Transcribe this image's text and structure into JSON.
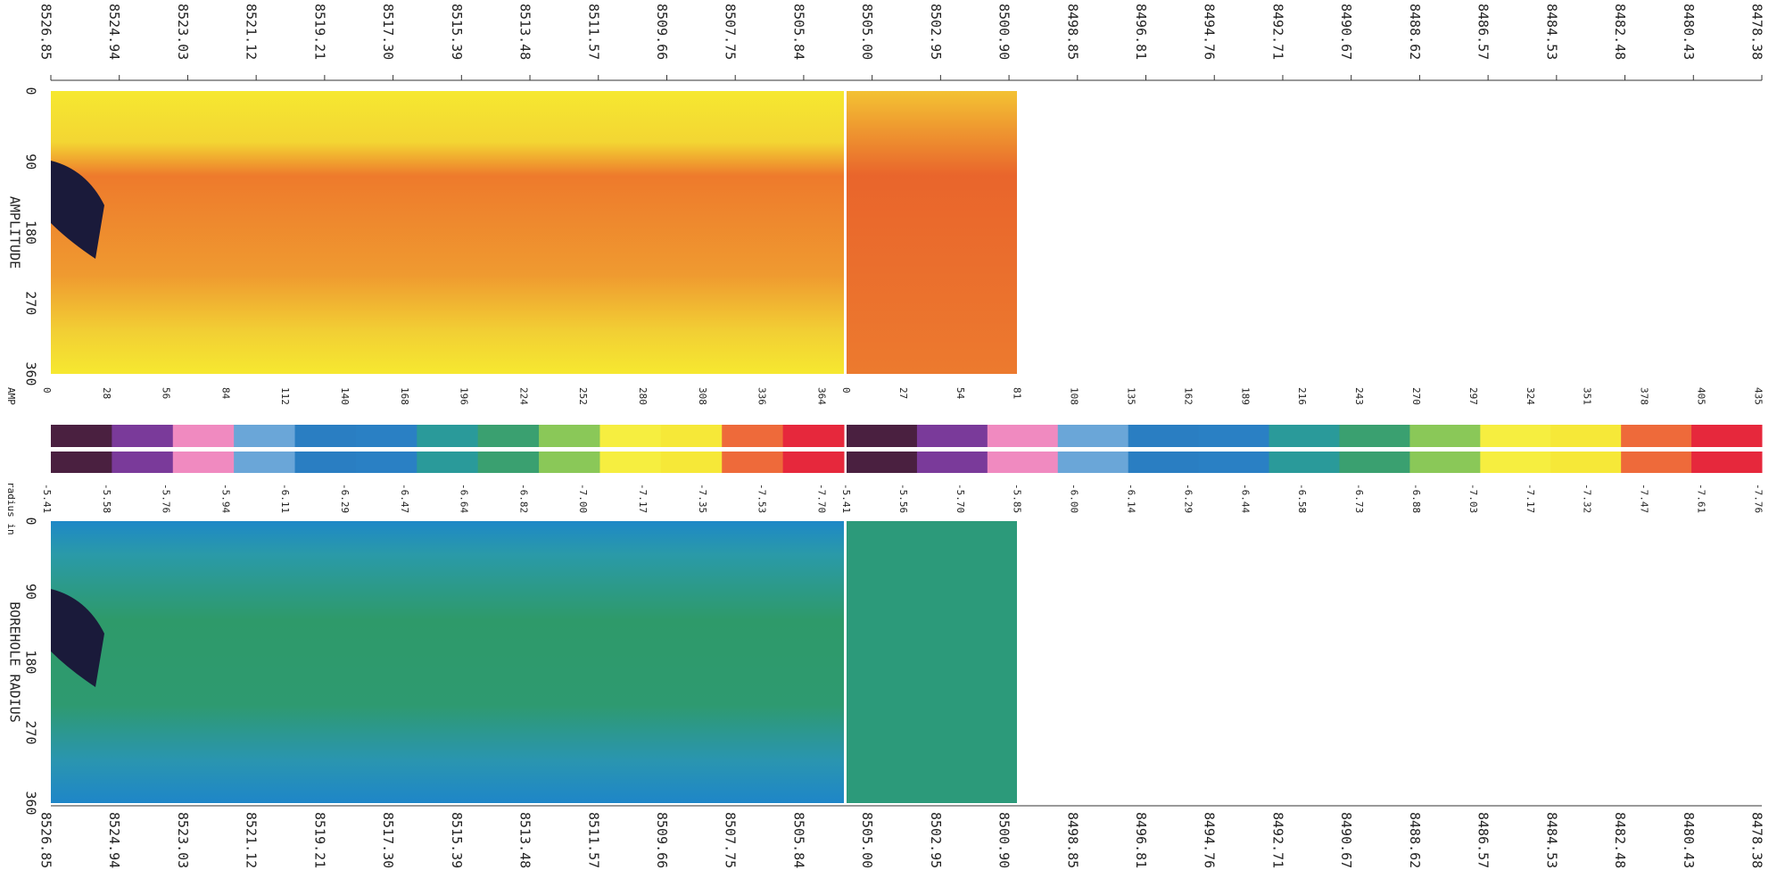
{
  "tracks": [
    {
      "title": "AMPLITUDE",
      "angles": [
        "0",
        "90",
        "180",
        "270",
        "360"
      ]
    },
    {
      "title": "BOREHOLE RADIUS",
      "angles": [
        "0",
        "90",
        "180",
        "270",
        "360"
      ]
    }
  ],
  "depths": [
    "8526.85",
    "8524.94",
    "8523.03",
    "8521.12",
    "8519.21",
    "8517.30",
    "8515.39",
    "8513.48",
    "8511.57",
    "8509.66",
    "8507.75",
    "8505.84",
    "8505.00",
    "8502.95",
    "8500.90",
    "8498.85",
    "8496.81",
    "8494.76",
    "8492.71",
    "8490.67",
    "8488.62",
    "8486.57",
    "8484.53",
    "8482.48",
    "8480.43",
    "8478.38"
  ],
  "scales": {
    "amp_title": "AMP",
    "radius_title": "radius in",
    "amp_left": [
      "0",
      "28",
      "56",
      "84",
      "112",
      "140",
      "168",
      "196",
      "224",
      "252",
      "280",
      "308",
      "336",
      "364"
    ],
    "amp_right": [
      "0",
      "27",
      "54",
      "81",
      "108",
      "135",
      "162",
      "189",
      "216",
      "243",
      "270",
      "297",
      "324",
      "351",
      "378",
      "405",
      "435"
    ],
    "radius_left": [
      "-5.41",
      "-5.58",
      "-5.76",
      "-5.94",
      "-6.11",
      "-6.29",
      "-6.47",
      "-6.64",
      "-6.82",
      "-7.00",
      "-7.17",
      "-7.35",
      "-7.53",
      "-7.70"
    ],
    "radius_right": [
      "-5.41",
      "-5.56",
      "-5.70",
      "-5.85",
      "-6.00",
      "-6.14",
      "-6.29",
      "-6.44",
      "-6.58",
      "-6.73",
      "-6.88",
      "-7.03",
      "-7.17",
      "-7.32",
      "-7.47",
      "-7.61",
      "-7.76"
    ]
  }
}
